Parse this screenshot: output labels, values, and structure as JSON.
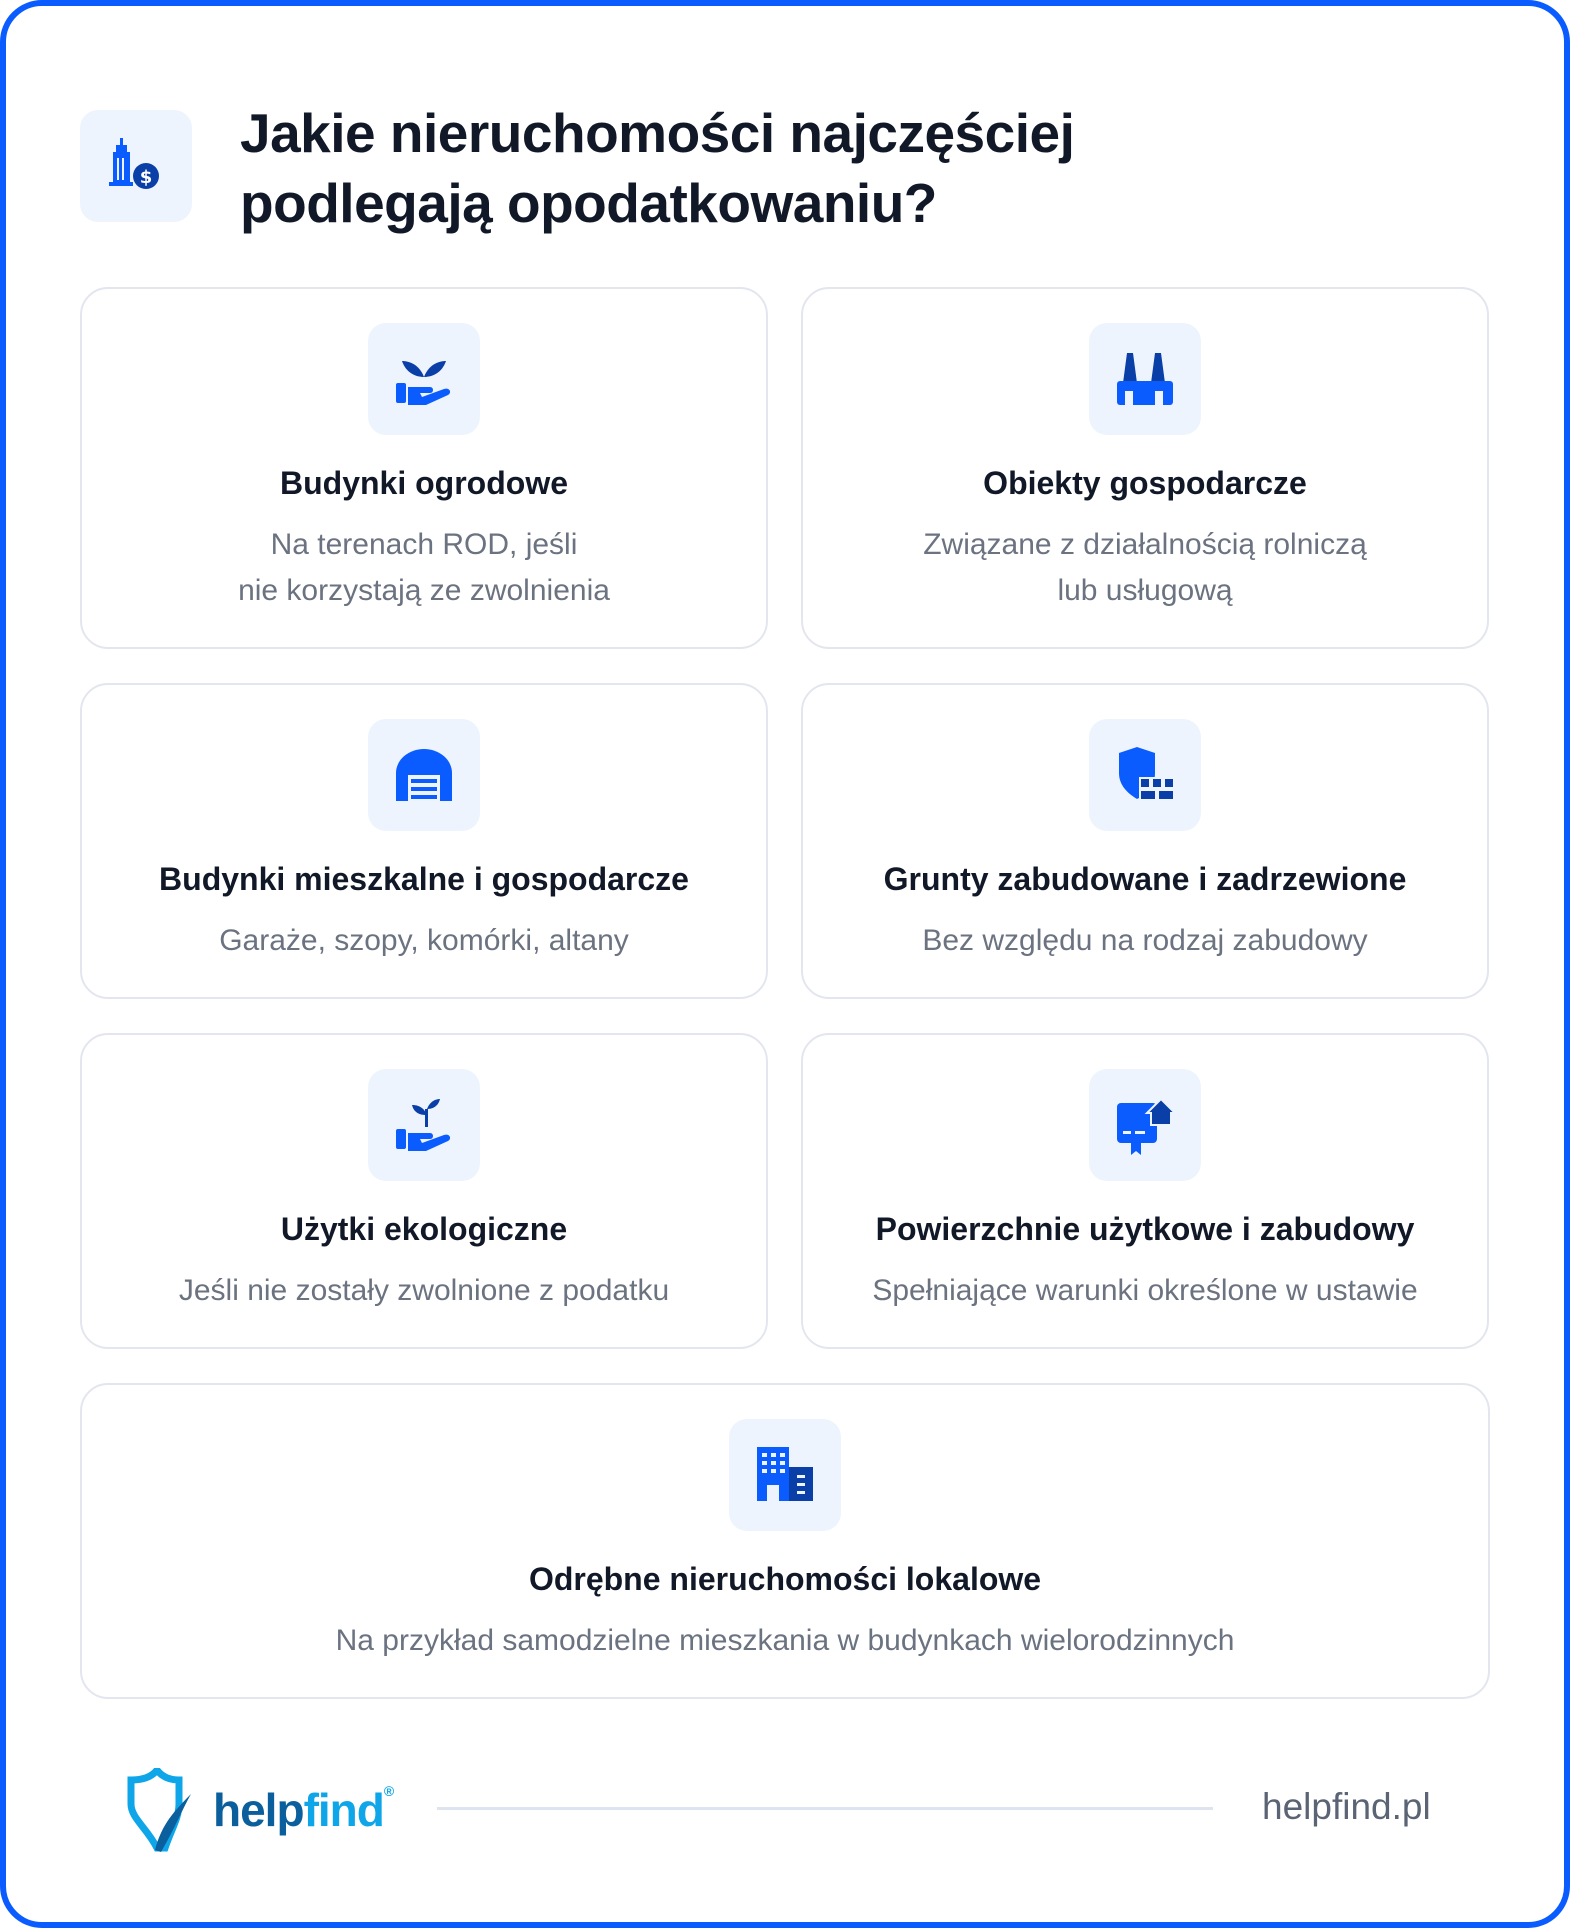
{
  "header": {
    "title_line1": "Jakie nieruchomości najczęściej",
    "title_line2": "podlegają opodatkowaniu?",
    "icon": "building-dollar-icon"
  },
  "cards": [
    {
      "title": "Budynki ogrodowe",
      "desc": "Na terenach ROD, jeśli\nnie korzystają ze zwolnienia",
      "icon": "hand-plant-icon"
    },
    {
      "title": "Obiekty gospodarcze",
      "desc": "Związane z działalnością rolniczą\nlub usługową",
      "icon": "factory-icon"
    },
    {
      "title": "Budynki mieszkalne i gospodarcze",
      "desc": "Garaże, szopy, komórki, altany",
      "icon": "garage-icon"
    },
    {
      "title": "Grunty zabudowane i zadrzewione",
      "desc": "Bez względu na rodzaj zabudowy",
      "icon": "shield-land-icon"
    },
    {
      "title": "Użytki ekologiczne",
      "desc": "Jeśli nie zostały zwolnione z podatku",
      "icon": "hand-sprout-icon"
    },
    {
      "title": "Powierzchnie użytkowe i zabudowy",
      "desc": "Spełniające warunki określone w ustawie",
      "icon": "certificate-house-icon"
    },
    {
      "title": "Odrębne nieruchomości lokalowe",
      "desc": "Na przykład samodzielne mieszkania w budynkach wielorodzinnych",
      "icon": "apartment-building-icon"
    }
  ],
  "footer": {
    "logo_help": "help",
    "logo_find": "find",
    "registered": "®",
    "site": "helpfind.pl"
  },
  "colors": {
    "accent": "#0a5cff",
    "dark_blue": "#0b3fa8",
    "text": "#111827",
    "muted": "#6b7280",
    "logo_dark": "#0a5f9c",
    "logo_light": "#0ea5e9"
  }
}
